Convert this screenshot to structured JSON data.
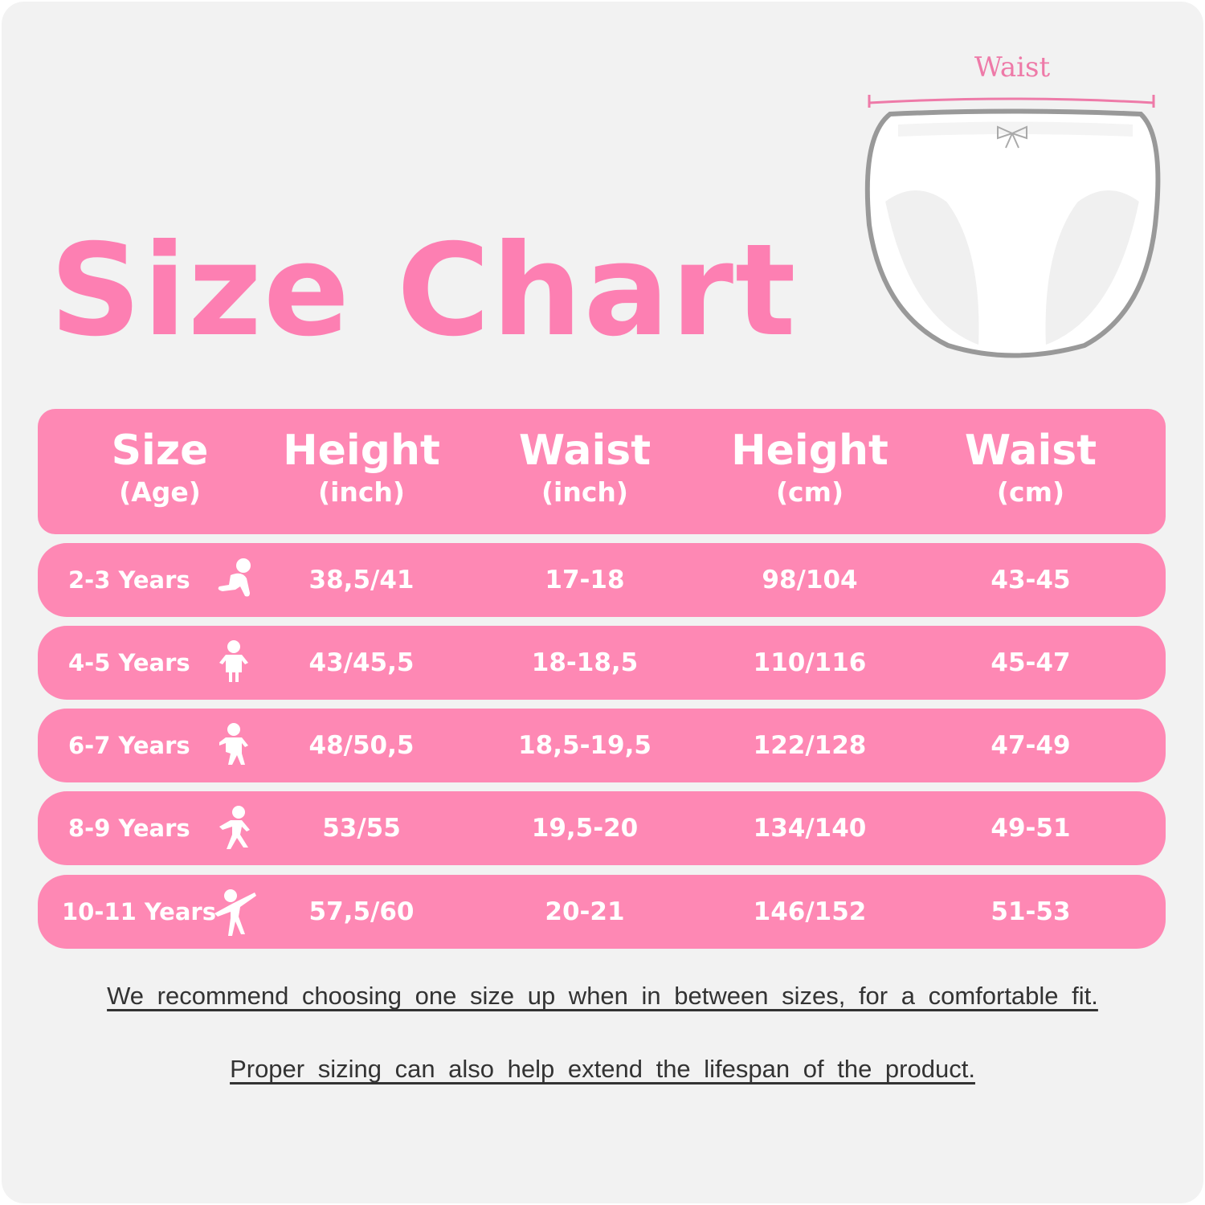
{
  "title": "Size Chart",
  "diagram": {
    "waist_label": "Waist"
  },
  "colors": {
    "accent": "#fe88b4",
    "title": "#fd7fb2",
    "background": "#f2f2f2"
  },
  "table": {
    "headers": [
      {
        "main": "Size",
        "sub": "(Age)"
      },
      {
        "main": "Height",
        "sub": "(inch)"
      },
      {
        "main": "Waist",
        "sub": "(inch)"
      },
      {
        "main": "Height",
        "sub": "(cm)"
      },
      {
        "main": "Waist",
        "sub": "(cm)"
      }
    ],
    "rows": [
      {
        "age": "2-3 Years",
        "icon": "crawling-baby-icon",
        "height_in": "38,5/41",
        "waist_in": "17-18",
        "height_cm": "98/104",
        "waist_cm": "43-45"
      },
      {
        "age": "4-5 Years",
        "icon": "toddler-standing-icon",
        "height_in": "43/45,5",
        "waist_in": "18-18,5",
        "height_cm": "110/116",
        "waist_cm": "45-47"
      },
      {
        "age": "6-7 Years",
        "icon": "child-walking-icon",
        "height_in": "48/50,5",
        "waist_in": "18,5-19,5",
        "height_cm": "122/128",
        "waist_cm": "47-49"
      },
      {
        "age": "8-9 Years",
        "icon": "child-running-icon",
        "height_in": "53/55",
        "waist_in": "19,5-20",
        "height_cm": "134/140",
        "waist_cm": "49-51"
      },
      {
        "age": "10-11 Years",
        "icon": "child-dancing-icon",
        "height_in": "57,5/60",
        "waist_in": "20-21",
        "height_cm": "146/152",
        "waist_cm": "51-53"
      }
    ]
  },
  "notes": [
    "We recommend choosing one size up when in between sizes, for a comfortable fit.",
    "Proper sizing can also help extend the lifespan of the product."
  ]
}
